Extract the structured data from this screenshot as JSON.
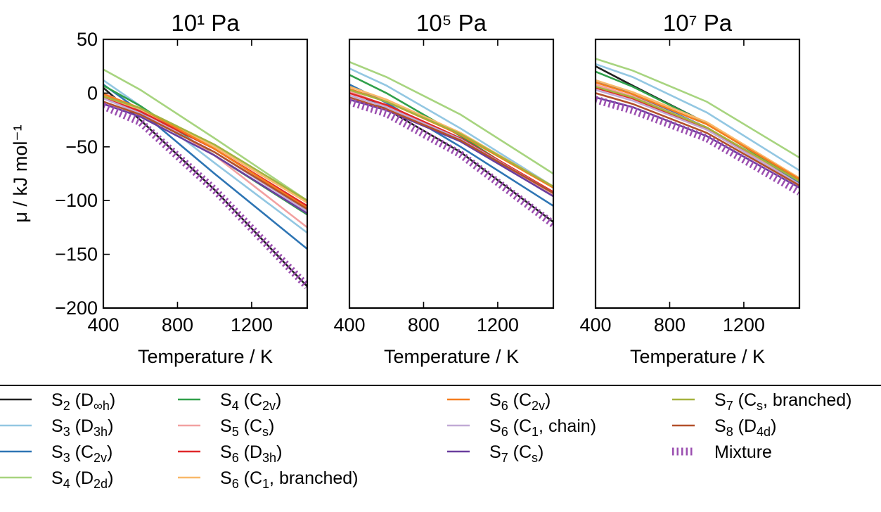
{
  "chart_data": [
    {
      "type": "line",
      "title": "10¹ Pa",
      "xlabel": "Temperature / K",
      "ylabel": "μ / kJ mol⁻¹",
      "xlim": [
        400,
        1500
      ],
      "ylim": [
        -200,
        50
      ],
      "xticks": [
        400,
        800,
        1200
      ],
      "yticks": [
        50,
        0,
        -50,
        -100,
        -150,
        -200
      ],
      "grid": false,
      "series": [
        {
          "name": "S2 (D∞h)",
          "color": "#222222",
          "x": [
            400,
            600,
            1000,
            1500
          ],
          "y": [
            5,
            -25,
            -90,
            -180
          ]
        },
        {
          "name": "S3 (D3h)",
          "color": "#93c7e2",
          "x": [
            400,
            600,
            1000,
            1500
          ],
          "y": [
            12,
            -12,
            -65,
            -130
          ]
        },
        {
          "name": "S3 (C2v)",
          "color": "#2e75b4",
          "x": [
            400,
            600,
            1000,
            1500
          ],
          "y": [
            8,
            -17,
            -75,
            -145
          ]
        },
        {
          "name": "S4 (D2d)",
          "color": "#a7d47f",
          "x": [
            400,
            600,
            1000,
            1500
          ],
          "y": [
            22,
            3,
            -42,
            -100
          ]
        },
        {
          "name": "S4 (C2v)",
          "color": "#30a04b",
          "x": [
            400,
            600,
            1000,
            1500
          ],
          "y": [
            7,
            -12,
            -58,
            -113
          ]
        },
        {
          "name": "S5 (Cs)",
          "color": "#f2a1a1",
          "x": [
            400,
            600,
            1000,
            1500
          ],
          "y": [
            0,
            -15,
            -58,
            -125
          ]
        },
        {
          "name": "S6 (D3h)",
          "color": "#e0282a",
          "x": [
            400,
            600,
            1000,
            1500
          ],
          "y": [
            -4,
            -17,
            -52,
            -105
          ]
        },
        {
          "name": "S6 (C1, branched)",
          "color": "#f9b96a",
          "x": [
            400,
            600,
            1000,
            1500
          ],
          "y": [
            -3,
            -15,
            -50,
            -102
          ]
        },
        {
          "name": "S6 (C2v)",
          "color": "#f57d1f",
          "x": [
            400,
            600,
            1000,
            1500
          ],
          "y": [
            -1,
            -14,
            -52,
            -107
          ]
        },
        {
          "name": "S6 (C1, chain)",
          "color": "#c1aad6",
          "x": [
            400,
            600,
            1000,
            1500
          ],
          "y": [
            -5,
            -19,
            -55,
            -110
          ]
        },
        {
          "name": "S7 (Cs)",
          "color": "#6a3e9e",
          "x": [
            400,
            600,
            1000,
            1500
          ],
          "y": [
            -10,
            -22,
            -58,
            -112
          ]
        },
        {
          "name": "S7 (Cs, branched)",
          "color": "#a5b23e",
          "x": [
            400,
            600,
            1000,
            1500
          ],
          "y": [
            -3,
            -14,
            -48,
            -100
          ]
        },
        {
          "name": "S8 (D4d)",
          "color": "#b3502a",
          "x": [
            400,
            600,
            1000,
            1500
          ],
          "y": [
            -8,
            -20,
            -55,
            -108
          ]
        },
        {
          "name": "Mixture",
          "color": "#9b4fb0",
          "style": "hatched",
          "x": [
            400,
            600,
            1000,
            1500
          ],
          "y": [
            -12,
            -27,
            -90,
            -180
          ]
        }
      ]
    },
    {
      "type": "line",
      "title": "10⁵ Pa",
      "xlabel": "Temperature / K",
      "xlim": [
        400,
        1500
      ],
      "ylim": [
        -200,
        50
      ],
      "xticks": [
        400,
        800,
        1200
      ],
      "grid": false,
      "series": [
        {
          "name": "S2 (D∞h)",
          "color": "#222222",
          "x": [
            400,
            600,
            1000,
            1500
          ],
          "y": [
            3,
            -15,
            -55,
            -120
          ]
        },
        {
          "name": "S3 (D3h)",
          "color": "#93c7e2",
          "x": [
            400,
            600,
            1000,
            1500
          ],
          "y": [
            23,
            7,
            -33,
            -87
          ]
        },
        {
          "name": "S3 (C2v)",
          "color": "#2e75b4",
          "x": [
            400,
            600,
            1000,
            1500
          ],
          "y": [
            8,
            -9,
            -50,
            -105
          ]
        },
        {
          "name": "S4 (D2d)",
          "color": "#a7d47f",
          "x": [
            400,
            600,
            1000,
            1500
          ],
          "y": [
            29,
            15,
            -20,
            -75
          ]
        },
        {
          "name": "S4 (C2v)",
          "color": "#30a04b",
          "x": [
            400,
            600,
            1000,
            1500
          ],
          "y": [
            17,
            0,
            -40,
            -95
          ]
        },
        {
          "name": "S5 (Cs)",
          "color": "#f2a1a1",
          "x": [
            400,
            600,
            1000,
            1500
          ],
          "y": [
            2,
            -12,
            -45,
            -95
          ]
        },
        {
          "name": "S6 (D3h)",
          "color": "#e0282a",
          "x": [
            400,
            600,
            1000,
            1500
          ],
          "y": [
            0,
            -11,
            -42,
            -92
          ]
        },
        {
          "name": "S6 (C1, branched)",
          "color": "#f9b96a",
          "x": [
            400,
            600,
            1000,
            1500
          ],
          "y": [
            6,
            -6,
            -37,
            -87
          ]
        },
        {
          "name": "S6 (C2v)",
          "color": "#f57d1f",
          "x": [
            400,
            600,
            1000,
            1500
          ],
          "y": [
            4,
            -8,
            -39,
            -88
          ]
        },
        {
          "name": "S6 (C1, chain)",
          "color": "#c1aad6",
          "x": [
            400,
            600,
            1000,
            1500
          ],
          "y": [
            -2,
            -13,
            -43,
            -93
          ]
        },
        {
          "name": "S7 (Cs)",
          "color": "#6a3e9e",
          "x": [
            400,
            600,
            1000,
            1500
          ],
          "y": [
            -6,
            -16,
            -45,
            -96
          ]
        },
        {
          "name": "S7 (Cs, branched)",
          "color": "#a5b23e",
          "x": [
            400,
            600,
            1000,
            1500
          ],
          "y": [
            3,
            -8,
            -38,
            -87
          ]
        },
        {
          "name": "S8 (D4d)",
          "color": "#b3502a",
          "x": [
            400,
            600,
            1000,
            1500
          ],
          "y": [
            -4,
            -15,
            -44,
            -93
          ]
        },
        {
          "name": "Mixture",
          "color": "#9b4fb0",
          "style": "hatched",
          "x": [
            400,
            600,
            1000,
            1500
          ],
          "y": [
            -8,
            -19,
            -57,
            -122
          ]
        }
      ]
    },
    {
      "type": "line",
      "title": "10⁷ Pa",
      "xlabel": "Temperature / K",
      "xlim": [
        400,
        1500
      ],
      "ylim": [
        -200,
        50
      ],
      "xticks": [
        400,
        800,
        1200
      ],
      "grid": false,
      "series": [
        {
          "name": "S2 (D∞h)",
          "color": "#222222",
          "x": [
            400,
            600,
            1000,
            1500
          ],
          "y": [
            25,
            7,
            -28,
            -82
          ]
        },
        {
          "name": "S3 (D3h)",
          "color": "#93c7e2",
          "x": [
            400,
            600,
            1000,
            1500
          ],
          "y": [
            27,
            15,
            -18,
            -72
          ]
        },
        {
          "name": "S3 (C2v)",
          "color": "#2e75b4",
          "x": [
            400,
            600,
            1000,
            1500
          ],
          "y": [
            12,
            -1,
            -32,
            -84
          ]
        },
        {
          "name": "S4 (D2d)",
          "color": "#a7d47f",
          "x": [
            400,
            600,
            1000,
            1500
          ],
          "y": [
            32,
            21,
            -8,
            -60
          ]
        },
        {
          "name": "S4 (C2v)",
          "color": "#30a04b",
          "x": [
            400,
            600,
            1000,
            1500
          ],
          "y": [
            20,
            6,
            -28,
            -82
          ]
        },
        {
          "name": "S5 (Cs)",
          "color": "#f2a1a1",
          "x": [
            400,
            600,
            1000,
            1500
          ],
          "y": [
            8,
            -3,
            -32,
            -85
          ]
        },
        {
          "name": "S6 (D3h)",
          "color": "#e0282a",
          "x": [
            400,
            600,
            1000,
            1500
          ],
          "y": [
            5,
            -5,
            -33,
            -86
          ]
        },
        {
          "name": "S6 (C1, branched)",
          "color": "#f9b96a",
          "x": [
            400,
            600,
            1000,
            1500
          ],
          "y": [
            12,
            1,
            -27,
            -79
          ]
        },
        {
          "name": "S6 (C2v)",
          "color": "#f57d1f",
          "x": [
            400,
            600,
            1000,
            1500
          ],
          "y": [
            10,
            -1,
            -29,
            -80
          ]
        },
        {
          "name": "S6 (C1, chain)",
          "color": "#c1aad6",
          "x": [
            400,
            600,
            1000,
            1500
          ],
          "y": [
            3,
            -7,
            -34,
            -85
          ]
        },
        {
          "name": "S7 (Cs)",
          "color": "#6a3e9e",
          "x": [
            400,
            600,
            1000,
            1500
          ],
          "y": [
            -4,
            -13,
            -40,
            -88
          ]
        },
        {
          "name": "S7 (Cs, branched)",
          "color": "#a5b23e",
          "x": [
            400,
            600,
            1000,
            1500
          ],
          "y": [
            6,
            -4,
            -32,
            -82
          ]
        },
        {
          "name": "S8 (D4d)",
          "color": "#b3502a",
          "x": [
            400,
            600,
            1000,
            1500
          ],
          "y": [
            0,
            -10,
            -37,
            -86
          ]
        },
        {
          "name": "Mixture",
          "color": "#9b4fb0",
          "style": "hatched",
          "x": [
            400,
            600,
            1000,
            1500
          ],
          "y": [
            -6,
            -16,
            -42,
            -92
          ]
        }
      ]
    }
  ],
  "legend": {
    "placement": "bottom",
    "entries": [
      {
        "base": "S",
        "sub": "2",
        "open": " (D",
        "sym": "∞h",
        "close": ")",
        "color": "#222222",
        "style": "line"
      },
      {
        "base": "S",
        "sub": "3",
        "open": " (D",
        "sym": "3h",
        "close": ")",
        "color": "#93c7e2",
        "style": "line"
      },
      {
        "base": "S",
        "sub": "3",
        "open": " (C",
        "sym": "2v",
        "close": ")",
        "color": "#2e75b4",
        "style": "line"
      },
      {
        "base": "S",
        "sub": "4",
        "open": " (D",
        "sym": "2d",
        "close": ")",
        "color": "#a7d47f",
        "style": "line"
      },
      {
        "base": "S",
        "sub": "4",
        "open": " (C",
        "sym": "2v",
        "close": ")",
        "color": "#30a04b",
        "style": "line"
      },
      {
        "base": "S",
        "sub": "5",
        "open": " (C",
        "sym": "s",
        "close": ")",
        "color": "#f2a1a1",
        "style": "line"
      },
      {
        "base": "S",
        "sub": "6",
        "open": " (D",
        "sym": "3h",
        "close": ")",
        "color": "#e0282a",
        "style": "line"
      },
      {
        "base": "S",
        "sub": "6",
        "open": " (C",
        "sym": "1",
        "close": ", branched)",
        "color": "#f9b96a",
        "style": "line"
      },
      {
        "base": "S",
        "sub": "6",
        "open": " (C",
        "sym": "2v",
        "close": ")",
        "color": "#f57d1f",
        "style": "line"
      },
      {
        "base": "S",
        "sub": "6",
        "open": " (C",
        "sym": "1",
        "close": ", chain)",
        "color": "#c1aad6",
        "style": "line"
      },
      {
        "base": "S",
        "sub": "7",
        "open": " (C",
        "sym": "s",
        "close": ")",
        "color": "#6a3e9e",
        "style": "line"
      },
      {
        "base": "S",
        "sub": "7",
        "open": " (C",
        "sym": "s",
        "close": ", branched)",
        "color": "#a5b23e",
        "style": "line"
      },
      {
        "base": "S",
        "sub": "8",
        "open": " (D",
        "sym": "4d",
        "close": ")",
        "color": "#b3502a",
        "style": "line"
      },
      {
        "base": "Mixture",
        "sub": "",
        "open": "",
        "sym": "",
        "close": "",
        "color": "#9b4fb0",
        "style": "hatched"
      }
    ]
  }
}
